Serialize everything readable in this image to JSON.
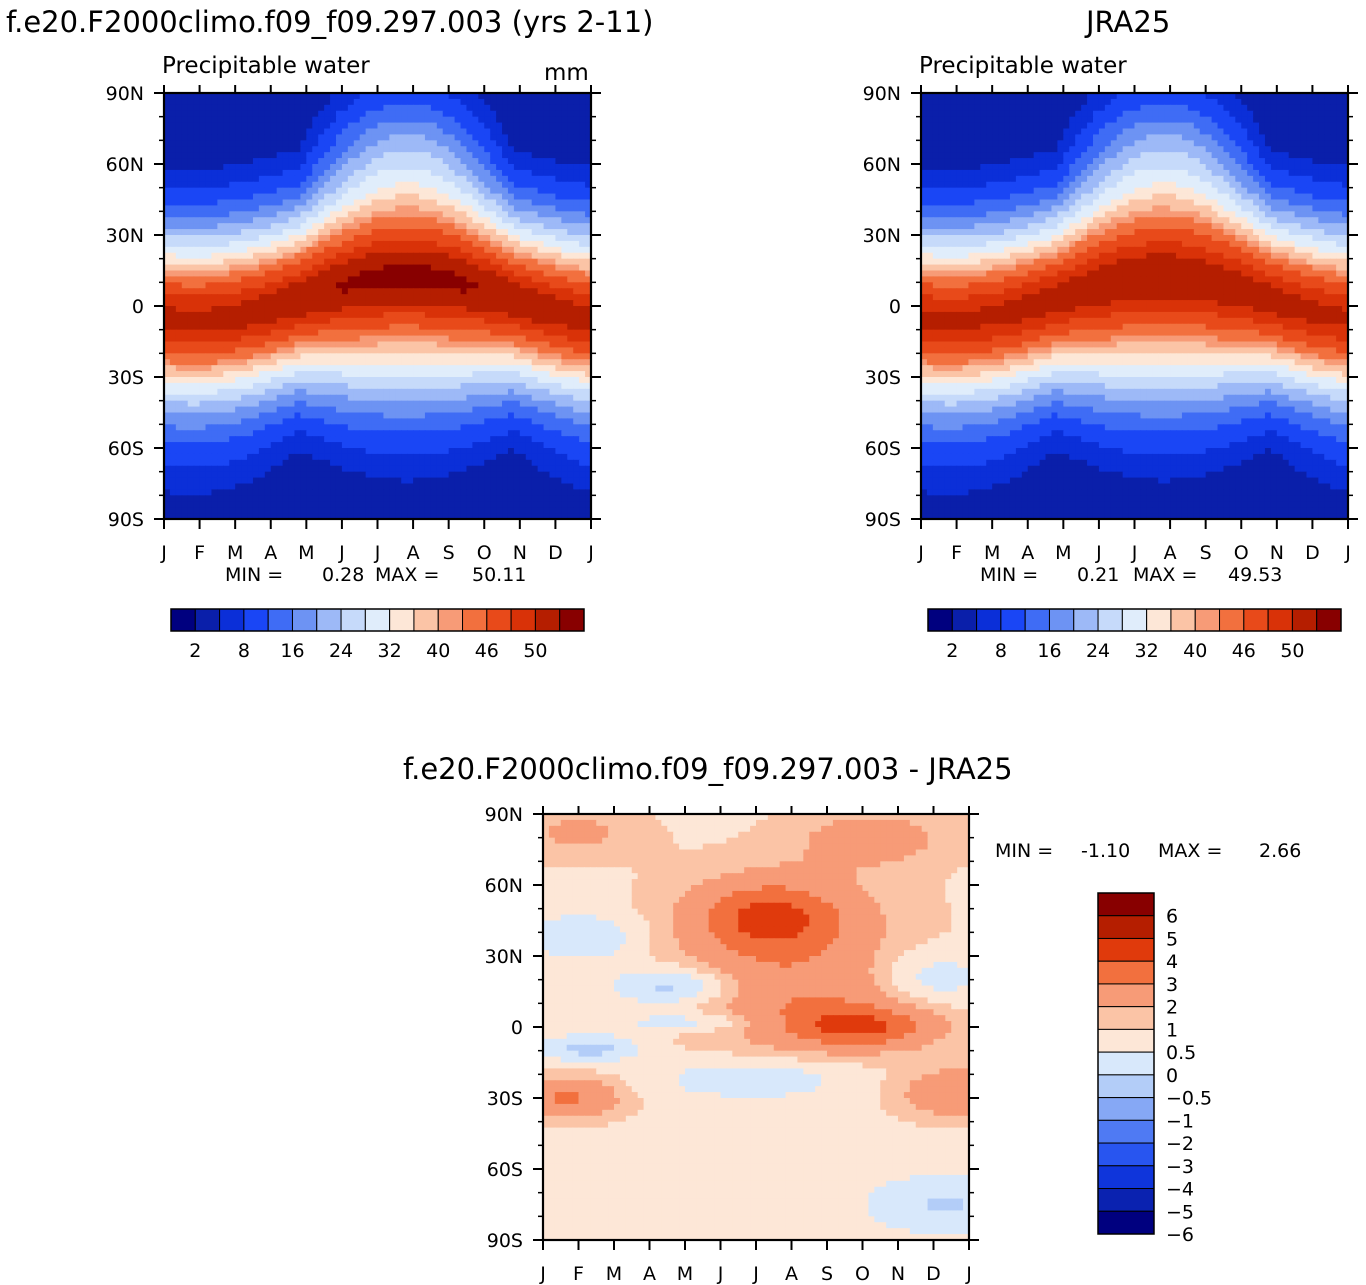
{
  "chart_data": [
    {
      "type": "heatmap",
      "title": "f.e20.F2000climo.f09_f09.297.003 (yrs 2-11)",
      "subtitle": "Precipitable water",
      "units": "mm",
      "x_tick_labels": [
        "J",
        "F",
        "M",
        "A",
        "M",
        "J",
        "J",
        "A",
        "S",
        "O",
        "N",
        "D",
        "J"
      ],
      "y_tick_labels": [
        "90N",
        "60N",
        "30N",
        "0",
        "30S",
        "60S",
        "90S"
      ],
      "ylim": [
        -90,
        90
      ],
      "min_label": "MIN =",
      "min_value": "0.28",
      "max_label": "MAX =",
      "max_value": "50.11",
      "colorbar_labels": [
        "2",
        "8",
        "16",
        "24",
        "32",
        "40",
        "46",
        "50"
      ],
      "colorbar_colors": [
        "#00007f",
        "#0a1faa",
        "#0b2fd8",
        "#1a46f5",
        "#3f6cf5",
        "#6d93f3",
        "#9db9f7",
        "#c6dafa",
        "#e0edfb",
        "#fde7d7",
        "#fbc4a6",
        "#f79b77",
        "#f2703e",
        "#e84a1a",
        "#d93208",
        "#b51e00",
        "#880000"
      ],
      "peak_value": 50.11,
      "peak_month": 7.3,
      "peak_latitude": 7
    },
    {
      "type": "heatmap",
      "title": "JRA25",
      "subtitle": "Precipitable water",
      "x_tick_labels": [
        "J",
        "F",
        "M",
        "A",
        "M",
        "J",
        "J",
        "A",
        "S",
        "O",
        "N",
        "D",
        "J"
      ],
      "y_tick_labels": [
        "90N",
        "60N",
        "30N",
        "0",
        "30S",
        "60S",
        "90S"
      ],
      "ylim": [
        -90,
        90
      ],
      "min_label": "MIN =",
      "min_value": "0.21",
      "max_label": "MAX =",
      "max_value": "49.53",
      "colorbar_labels": [
        "2",
        "8",
        "16",
        "24",
        "32",
        "40",
        "46",
        "50"
      ],
      "colorbar_colors": [
        "#00007f",
        "#0a1faa",
        "#0b2fd8",
        "#1a46f5",
        "#3f6cf5",
        "#6d93f3",
        "#9db9f7",
        "#c6dafa",
        "#e0edfb",
        "#fde7d7",
        "#fbc4a6",
        "#f79b77",
        "#f2703e",
        "#e84a1a",
        "#d93208",
        "#b51e00",
        "#880000"
      ],
      "peak_value": 49.53,
      "peak_month": 7.2,
      "peak_latitude": 6
    },
    {
      "type": "heatmap",
      "title": "f.e20.F2000climo.f09_f09.297.003 - JRA25",
      "x_tick_labels": [
        "J",
        "F",
        "M",
        "A",
        "M",
        "J",
        "J",
        "A",
        "S",
        "O",
        "N",
        "D",
        "J"
      ],
      "y_tick_labels": [
        "90N",
        "60N",
        "30N",
        "0",
        "30S",
        "60S",
        "90S"
      ],
      "ylim": [
        -90,
        90
      ],
      "min_label": "MIN =",
      "min_value": "-1.10",
      "max_label": "MAX =",
      "max_value": "2.66",
      "colorbar_labels": [
        "6",
        "5",
        "4",
        "3",
        "2",
        "1",
        "0.5",
        "0",
        "-0.5",
        "-1",
        "-2",
        "-3",
        "-4",
        "-5",
        "-6"
      ],
      "colorbar_colors": [
        "#880000",
        "#b51e00",
        "#e03a0c",
        "#f2703e",
        "#f79b77",
        "#fbc4a6",
        "#fde7d7",
        "#d8e8fb",
        "#b3cdf8",
        "#86a8f5",
        "#4f7af3",
        "#2855f0",
        "#0f35db",
        "#0a22b0",
        "#00007f"
      ],
      "features": [
        {
          "name": "northern-midlatitude-max",
          "month": 6.4,
          "latitude": 47,
          "value": 2.4
        },
        {
          "name": "equatorial-positive",
          "month": 8.8,
          "latitude": 0,
          "value": 2.66
        },
        {
          "name": "southern-subtropical-positive",
          "month": 0.8,
          "latitude": -30,
          "value": 2.0
        },
        {
          "name": "northern-subtropical-negative",
          "month": 3.8,
          "latitude": 17,
          "value": -1.1
        }
      ]
    }
  ]
}
